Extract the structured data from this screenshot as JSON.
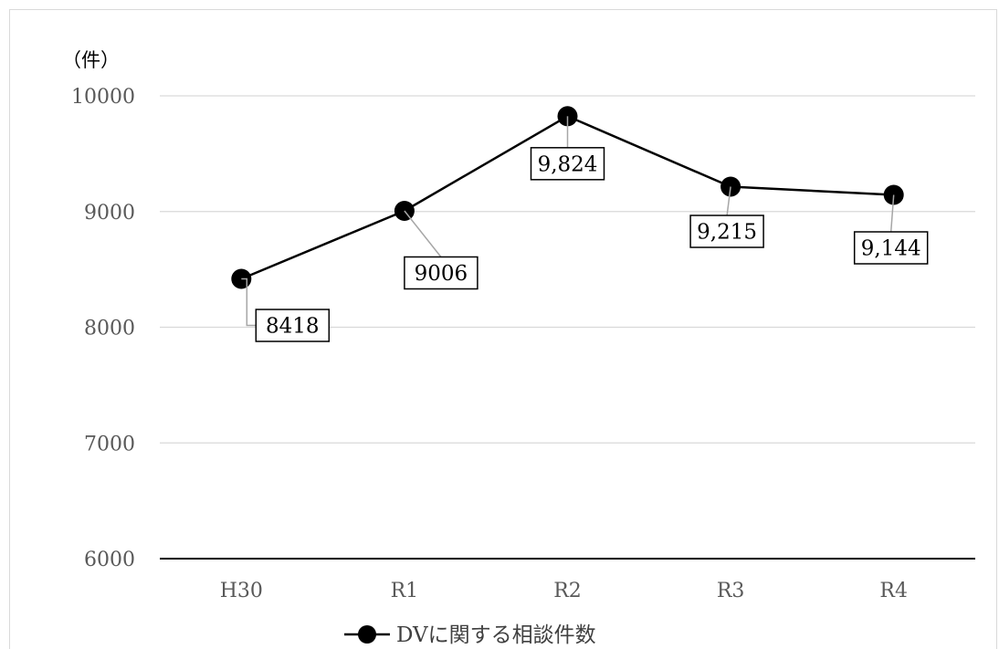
{
  "chart_data": {
    "type": "line",
    "unit_label": "（件）",
    "categories": [
      "H30",
      "R1",
      "R2",
      "R3",
      "R4"
    ],
    "ylim": [
      6000,
      10000
    ],
    "yticks": [
      "6000",
      "7000",
      "8000",
      "9000",
      "10000"
    ],
    "grid": true,
    "legend_position": "bottom",
    "series": [
      {
        "name": "DVに関する相談件数",
        "values": [
          8418,
          9006,
          9824,
          9215,
          9144
        ],
        "labels": [
          "8418",
          "9006",
          "9,824",
          "9,215",
          "9,144"
        ]
      }
    ]
  }
}
